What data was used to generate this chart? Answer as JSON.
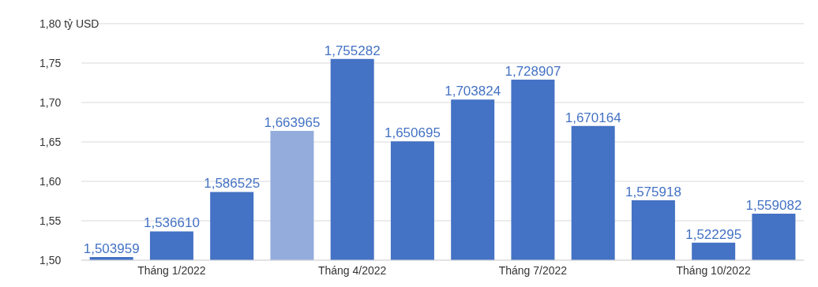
{
  "chart_data": {
    "type": "bar",
    "categories": [
      null,
      "Tháng 1/2022",
      null,
      null,
      "Tháng 4/2022",
      null,
      null,
      "Tháng 7/2022",
      null,
      null,
      "Tháng 10/2022",
      null
    ],
    "values": [
      1.503959,
      1.53661,
      1.586525,
      1.663965,
      1.755282,
      1.650695,
      1.703824,
      1.728907,
      1.670164,
      1.575918,
      1.522295,
      1.559082
    ],
    "value_labels": [
      "1,503959",
      "1,536610",
      "1,586525",
      "1,663965",
      "1,755282",
      "1,650695",
      "1,703824",
      "1,728907",
      "1,670164",
      "1,575918",
      "1,522295",
      "1,559082"
    ],
    "colors": [
      "#4472c4",
      "#4472c4",
      "#4472c4",
      "#93acdc",
      "#4472c4",
      "#4472c4",
      "#4472c4",
      "#4472c4",
      "#4472c4",
      "#4472c4",
      "#4472c4",
      "#4472c4"
    ],
    "ylim": [
      1.5,
      1.8
    ],
    "yticks": [
      {
        "value": 1.5,
        "label": "1,50"
      },
      {
        "value": 1.55,
        "label": "1,55"
      },
      {
        "value": 1.6,
        "label": "1,60"
      },
      {
        "value": 1.65,
        "label": "1,65"
      },
      {
        "value": 1.7,
        "label": "1,70"
      },
      {
        "value": 1.75,
        "label": "1,75"
      },
      {
        "value": 1.8,
        "label": "1,80 tỷ USD"
      }
    ],
    "grid": "y"
  }
}
